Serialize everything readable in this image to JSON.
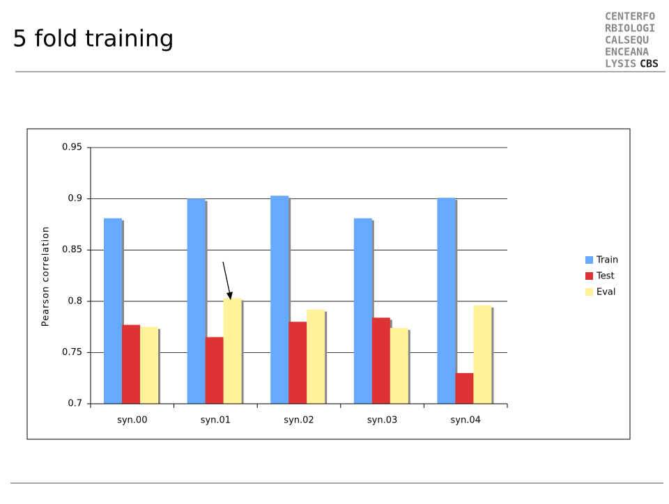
{
  "title": "5 fold training",
  "logo": [
    "CENTERFO",
    "RBIOLOGI",
    "CALSEQU",
    "ENCEANA",
    "LYSIS",
    "CBS"
  ],
  "chart_data": {
    "type": "bar",
    "y_label": "Pearson correlation",
    "categories": [
      "syn.00",
      "syn.01",
      "syn.02",
      "syn.03",
      "syn.04"
    ],
    "series": [
      {
        "name": "Train",
        "color": "#66aaff",
        "values": [
          0.881,
          0.9,
          0.903,
          0.881,
          0.901
        ]
      },
      {
        "name": "Test",
        "color": "#dd3333",
        "values": [
          0.777,
          0.765,
          0.78,
          0.784,
          0.73
        ]
      },
      {
        "name": "Eval",
        "color": "#fff299",
        "values": [
          0.775,
          0.803,
          0.792,
          0.774,
          0.796
        ]
      }
    ],
    "ylim": [
      0.7,
      0.95
    ],
    "yticks": [
      0.7,
      0.75,
      0.8,
      0.85,
      0.9,
      0.95
    ],
    "grid": true,
    "legend": "right"
  }
}
